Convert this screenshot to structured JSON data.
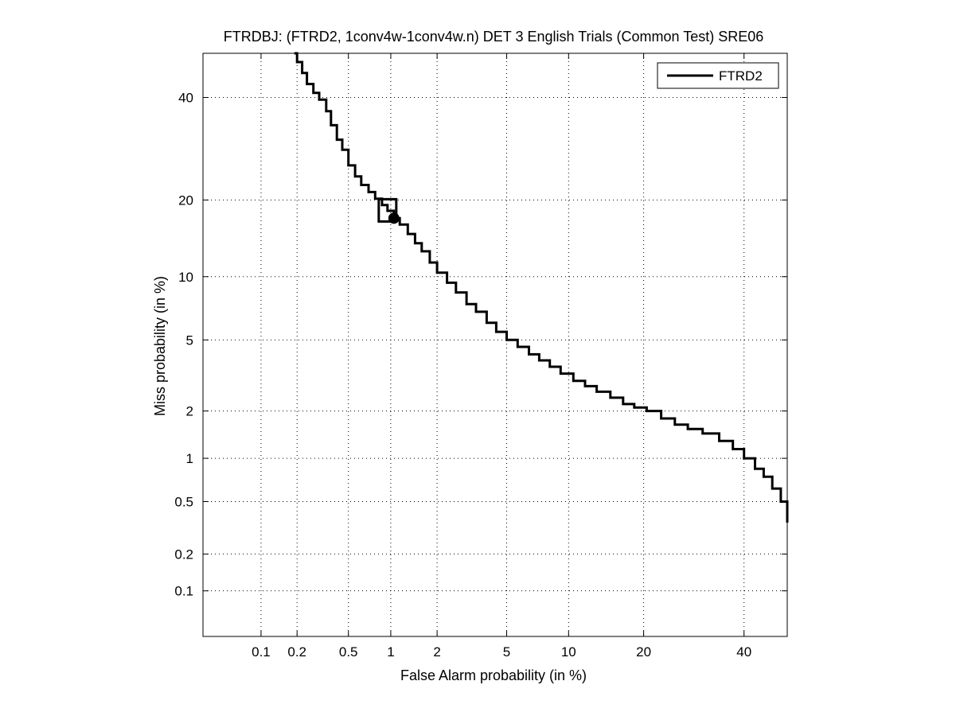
{
  "chart_data": {
    "type": "line",
    "title": "FTRDBJ: (FTRD2, 1conv4w-1conv4w.n) DET 3 English Trials (Common Test) SRE06",
    "xlabel": "False Alarm probability (in %)",
    "ylabel": "Miss probability (in %)",
    "x_scale": "normal-deviate",
    "y_scale": "normal-deviate",
    "xlim": [
      0.03,
      50
    ],
    "ylim": [
      0.04,
      50
    ],
    "grid": true,
    "legend_position": "top-right",
    "x_ticks": [
      {
        "value": 0.1,
        "label": "0.1"
      },
      {
        "value": 0.2,
        "label": "0.2"
      },
      {
        "value": 0.5,
        "label": "0.5"
      },
      {
        "value": 1,
        "label": "1"
      },
      {
        "value": 2,
        "label": "2"
      },
      {
        "value": 5,
        "label": "5"
      },
      {
        "value": 10,
        "label": "10"
      },
      {
        "value": 20,
        "label": "20"
      },
      {
        "value": 40,
        "label": "40"
      }
    ],
    "y_ticks": [
      {
        "value": 0.1,
        "label": "0.1"
      },
      {
        "value": 0.2,
        "label": "0.2"
      },
      {
        "value": 0.5,
        "label": "0.5"
      },
      {
        "value": 1,
        "label": "1"
      },
      {
        "value": 2,
        "label": "2"
      },
      {
        "value": 5,
        "label": "5"
      },
      {
        "value": 10,
        "label": "10"
      },
      {
        "value": 20,
        "label": "20"
      },
      {
        "value": 40,
        "label": "40"
      }
    ],
    "series": [
      {
        "name": "FTRD2",
        "color": "#000000",
        "x": [
          0.19,
          0.2,
          0.22,
          0.24,
          0.27,
          0.3,
          0.34,
          0.37,
          0.41,
          0.45,
          0.5,
          0.56,
          0.62,
          0.7,
          0.78,
          0.87,
          0.95,
          1.05,
          1.15,
          1.3,
          1.45,
          1.6,
          1.8,
          2.0,
          2.3,
          2.6,
          3.0,
          3.4,
          3.9,
          4.4,
          5.0,
          5.7,
          6.5,
          7.3,
          8.2,
          9.2,
          10.5,
          11.8,
          13.2,
          15.0,
          16.8,
          18.5,
          20.5,
          23.0,
          25.5,
          28.0,
          31.0,
          34.5,
          37.5,
          40.0,
          42.5,
          44.5,
          46.5,
          48.5,
          50.0
        ],
        "y": [
          50.0,
          48.0,
          45.5,
          43.0,
          41.0,
          39.5,
          37.0,
          34.0,
          31.0,
          29.0,
          26.0,
          24.0,
          22.5,
          21.3,
          20.2,
          19.2,
          18.3,
          17.2,
          16.3,
          15.0,
          13.8,
          12.8,
          11.5,
          10.4,
          9.4,
          8.5,
          7.5,
          6.9,
          6.1,
          5.5,
          5.0,
          4.6,
          4.2,
          3.9,
          3.6,
          3.3,
          3.0,
          2.8,
          2.6,
          2.4,
          2.2,
          2.1,
          2.0,
          1.8,
          1.65,
          1.55,
          1.45,
          1.3,
          1.15,
          1.0,
          0.85,
          0.75,
          0.62,
          0.5,
          0.35
        ]
      }
    ],
    "markers": [
      {
        "shape": "square",
        "x": 0.95,
        "y": 18.5
      },
      {
        "shape": "circle",
        "x": 1.05,
        "y": 17.2
      }
    ]
  }
}
